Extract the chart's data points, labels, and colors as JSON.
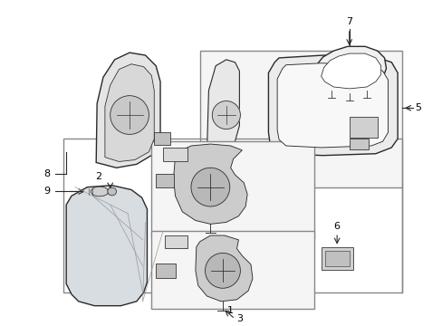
{
  "background_color": "#ffffff",
  "line_color": "#2a2a2a",
  "gray_fill": "#e8e8e8",
  "dark_gray": "#aaaaaa",
  "fig_width": 4.89,
  "fig_height": 3.6,
  "dpi": 100
}
